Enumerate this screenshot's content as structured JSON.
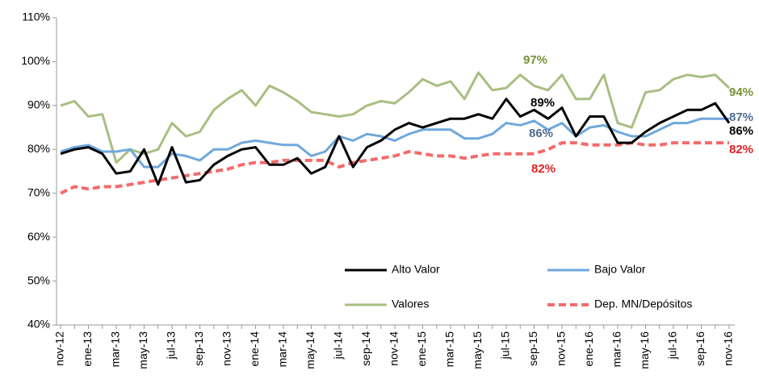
{
  "chart_data": {
    "type": "line",
    "categories": [
      "nov-12",
      null,
      "ene-13",
      null,
      "mar-13",
      null,
      "may-13",
      null,
      "jul-13",
      null,
      "sep-13",
      null,
      "nov-13",
      null,
      "ene-14",
      null,
      "mar-14",
      null,
      "may-14",
      null,
      "jul-14",
      null,
      "sep-14",
      null,
      "nov-14",
      null,
      "ene-15",
      null,
      "mar-15",
      null,
      "may-15",
      null,
      "jul-15",
      null,
      "sep-15",
      null,
      "nov-15",
      null,
      "ene-16",
      null,
      "mar-16",
      null,
      "may-16",
      null,
      "jul-16",
      null,
      "sep-16",
      null,
      "nov-16"
    ],
    "series": [
      {
        "name": "Alto Valor",
        "color": "#000000",
        "dashed": false,
        "values": [
          79,
          80,
          80.5,
          79,
          74.5,
          75,
          80,
          72,
          80.5,
          72.5,
          73,
          76.5,
          78.5,
          80,
          80.5,
          76.5,
          76.5,
          78,
          74.5,
          76,
          83,
          76,
          80.5,
          82,
          84.5,
          86,
          85,
          86,
          87,
          87,
          88,
          87,
          91.5,
          87.5,
          89,
          87,
          89.5,
          83,
          87.5,
          87.5,
          81.5,
          81.5,
          84,
          86,
          87.5,
          89,
          89,
          90.5,
          86
        ]
      },
      {
        "name": "Bajo Valor",
        "color": "#6fa8dc",
        "dashed": false,
        "values": [
          79.5,
          80.5,
          81,
          79.5,
          79.5,
          80,
          76,
          76,
          79,
          78.5,
          77.5,
          80,
          80,
          81.5,
          82,
          81.5,
          81,
          81,
          78.5,
          79.5,
          83,
          82,
          83.5,
          83,
          82,
          83.5,
          84.5,
          84.5,
          84.5,
          82.5,
          82.5,
          83.5,
          86,
          85.5,
          86.5,
          84.5,
          86,
          83,
          85,
          85.5,
          84,
          83,
          83,
          84.5,
          86,
          86,
          87,
          87,
          87
        ]
      },
      {
        "name": "Valores",
        "color": "#a8be82",
        "dashed": false,
        "values": [
          90,
          91,
          87.5,
          88,
          77,
          80,
          79,
          80,
          86,
          83,
          84,
          89,
          91.5,
          93.5,
          90,
          94.5,
          93,
          91,
          88.5,
          88,
          87.5,
          88,
          90,
          91,
          90.5,
          93,
          96,
          94.5,
          95.5,
          91.5,
          97.5,
          93.5,
          94,
          97,
          94.5,
          93.5,
          97,
          91.5,
          91.5,
          97,
          86,
          85,
          93,
          93.5,
          96,
          97,
          96.5,
          97,
          94
        ]
      },
      {
        "name": "Dep. MN/Depósitos",
        "color": "#f36b6b",
        "dashed": true,
        "values": [
          70,
          71.5,
          71,
          71.5,
          71.5,
          72,
          72.5,
          73,
          73.5,
          74,
          74.5,
          75,
          75.5,
          76.5,
          77,
          77,
          77.5,
          77.5,
          77.5,
          77.5,
          76,
          77,
          77.5,
          78,
          78.5,
          79.5,
          79,
          78.5,
          78.5,
          78,
          78.5,
          79,
          79,
          79,
          79,
          80,
          81.5,
          81.5,
          81,
          81,
          81,
          81.5,
          81,
          81,
          81.5,
          81.5,
          81.5,
          81.5,
          81.5
        ]
      }
    ],
    "ylim": [
      40,
      110
    ],
    "yticks": [
      {
        "value": 40,
        "label": "40%"
      },
      {
        "value": 50,
        "label": "50%"
      },
      {
        "value": 60,
        "label": "60%"
      },
      {
        "value": 70,
        "label": "70%"
      },
      {
        "value": 80,
        "label": "80%"
      },
      {
        "value": 90,
        "label": "90%"
      },
      {
        "value": 100,
        "label": "100%"
      },
      {
        "value": 110,
        "label": "110%"
      }
    ],
    "grid": false,
    "legend": "lower right",
    "annotations": [
      {
        "text": "97%",
        "color": "#77933c"
      },
      {
        "text": "89%",
        "color": "#000000"
      },
      {
        "text": "86%",
        "color": "#4f6d8f"
      },
      {
        "text": "82%",
        "color": "#e32020"
      },
      {
        "text": "94%",
        "color": "#77933c"
      },
      {
        "text": "87%",
        "color": "#4f6d8f"
      },
      {
        "text": "86%",
        "color": "#000000"
      },
      {
        "text": "82%",
        "color": "#e32020"
      }
    ]
  }
}
